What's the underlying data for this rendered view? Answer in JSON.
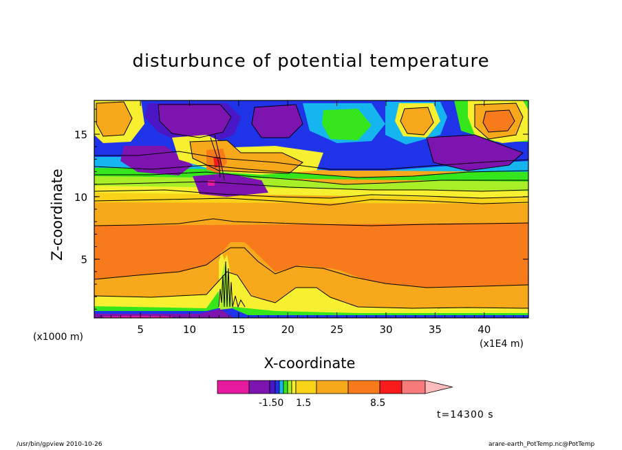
{
  "chart_data": {
    "type": "heatmap",
    "title": "disturbunce of potential temperature",
    "xlabel": "X-coordinate",
    "ylabel": "Z-coordinate",
    "x_unit_label": "(x1000 m)",
    "x_scale_label": "(x1E4 m)",
    "xlim": [
      0.3,
      44.5
    ],
    "ylim": [
      0.3,
      17.7
    ],
    "x_ticks": [
      "5",
      "10",
      "15",
      "20",
      "25",
      "30",
      "35",
      "40"
    ],
    "y_ticks": [
      "5",
      "10",
      "15"
    ],
    "colorbar": {
      "colors": [
        "#e61a9e",
        "#7d14b0",
        "#4a16c6",
        "#1f33e8",
        "#15b6f0",
        "#36e61c",
        "#a9ef28",
        "#f6f030",
        "#f8d318",
        "#f7a91b",
        "#f77a1b",
        "#f71b1b",
        "#f87a7a",
        "#fcbcbc"
      ],
      "tick_labels": [
        "-1.50",
        "1.5",
        "8.5"
      ]
    },
    "time_label": "t=14300 s",
    "footer_left": "/usr/bin/gpview  2010-10-26",
    "footer_right": "arare-earth_PotTemp.nc@PotTemp"
  }
}
